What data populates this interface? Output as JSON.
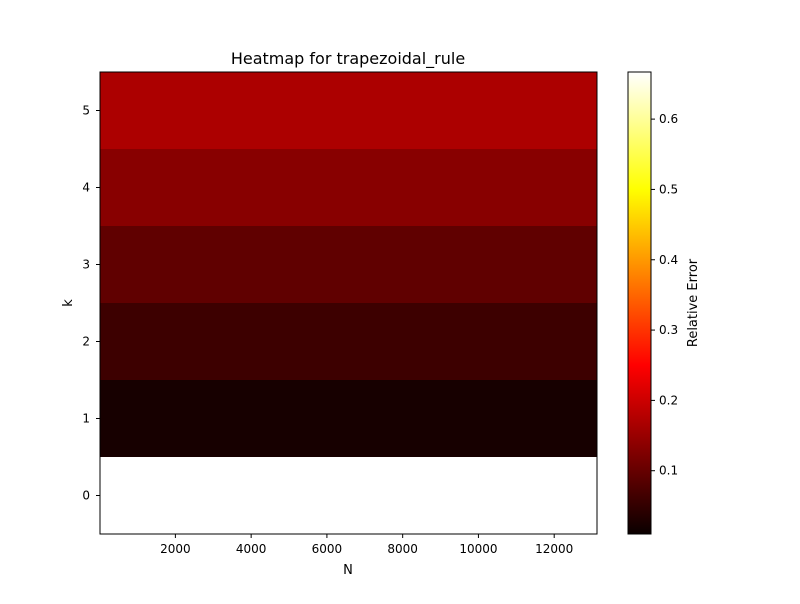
{
  "chart_data": {
    "type": "heatmap",
    "title": "Heatmap for trapezoidal_rule",
    "xlabel": "N",
    "ylabel": "k",
    "x_range": [
      10,
      13130
    ],
    "x_ticks": [
      2000,
      4000,
      6000,
      8000,
      10000,
      12000
    ],
    "x_tick_labels": [
      "2000",
      "4000",
      "6000",
      "8000",
      "10000",
      "12000"
    ],
    "y_categories": [
      0,
      1,
      2,
      3,
      4,
      5
    ],
    "y_tick_labels": [
      "0",
      "1",
      "2",
      "3",
      "4",
      "5"
    ],
    "rows": [
      {
        "k": 0,
        "relative_error": 0.667
      },
      {
        "k": 1,
        "relative_error": 0.022
      },
      {
        "k": 2,
        "relative_error": 0.057
      },
      {
        "k": 3,
        "relative_error": 0.09
      },
      {
        "k": 4,
        "relative_error": 0.128
      },
      {
        "k": 5,
        "relative_error": 0.162
      }
    ],
    "colorbar": {
      "label": "Relative Error",
      "colormap": "hot",
      "range": [
        0.01,
        0.667
      ],
      "ticks": [
        0.1,
        0.2,
        0.3,
        0.4,
        0.5,
        0.6
      ],
      "tick_labels": [
        "0.1",
        "0.2",
        "0.3",
        "0.4",
        "0.5",
        "0.6"
      ]
    },
    "grid": false
  }
}
